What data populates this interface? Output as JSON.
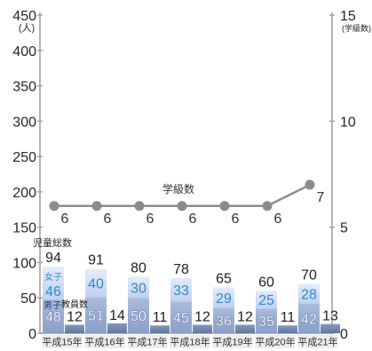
{
  "chart_data": {
    "type": "bar",
    "categories": [
      "平成15年",
      "平成16年",
      "平成17年",
      "平成18年",
      "平成19年",
      "平成20年",
      "平成21年"
    ],
    "totals": {
      "name": "児童総数",
      "values": [
        94,
        91,
        80,
        78,
        65,
        60,
        70
      ]
    },
    "series": [
      {
        "name": "女子",
        "type": "bar",
        "stacked": true,
        "axis": "left",
        "color": "#c1d1ed",
        "values": [
          46,
          40,
          30,
          33,
          29,
          25,
          28
        ]
      },
      {
        "name": "男子",
        "type": "bar",
        "stacked": true,
        "axis": "left",
        "color": "#8a9fc9",
        "values": [
          48,
          51,
          50,
          45,
          36,
          35,
          42
        ]
      },
      {
        "name": "教員数",
        "type": "bar",
        "axis": "left",
        "color": "#62799f",
        "values": [
          12,
          14,
          11,
          12,
          12,
          11,
          13
        ]
      },
      {
        "name": "学級数",
        "type": "line",
        "axis": "right",
        "color": "#8c8c8c",
        "values": [
          6,
          6,
          6,
          6,
          6,
          6,
          7
        ]
      }
    ],
    "y_left": {
      "label": "(人)",
      "lim": [
        0,
        450
      ],
      "ticks": [
        0,
        50,
        100,
        150,
        200,
        250,
        300,
        350,
        400,
        450
      ]
    },
    "y_right": {
      "label": "(学級数)",
      "lim": [
        0,
        15
      ],
      "ticks": [
        0,
        5,
        10,
        15
      ]
    },
    "grid": false,
    "legend": "inline"
  }
}
